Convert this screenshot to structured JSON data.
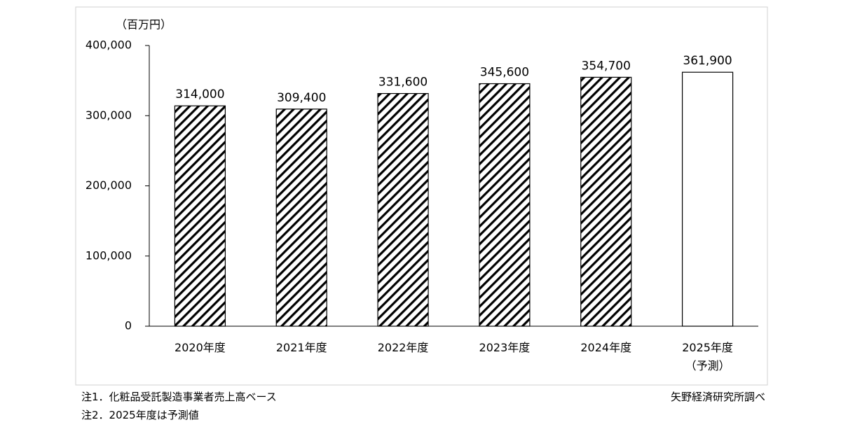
{
  "chart_data": {
    "type": "bar",
    "unit_label": "（百万円）",
    "categories": [
      "2020年度",
      "2021年度",
      "2022年度",
      "2023年度",
      "2024年度",
      "2025年度\n（予測）"
    ],
    "values": [
      314000,
      309400,
      331600,
      345600,
      354700,
      361900
    ],
    "value_labels": [
      "314,000",
      "309,400",
      "331,600",
      "345,600",
      "354,700",
      "361,900"
    ],
    "patterns": [
      "hatch",
      "hatch",
      "hatch",
      "hatch",
      "hatch",
      "none"
    ],
    "color": "#000000",
    "ylim": [
      0,
      400000
    ],
    "yticks": [
      0,
      {
        "value": 100000,
        "label": "100,000"
      },
      {
        "value": 200000,
        "label": "200,000"
      },
      {
        "value": 300000,
        "label": "300,000"
      },
      {
        "value": 400000,
        "label": "400,000"
      }
    ],
    "grid": false,
    "notes": [
      "注1．化粧品受託製造事業者売上高ベース",
      "注2．2025年度は予測値"
    ],
    "source": "矢野経済研究所調べ"
  }
}
